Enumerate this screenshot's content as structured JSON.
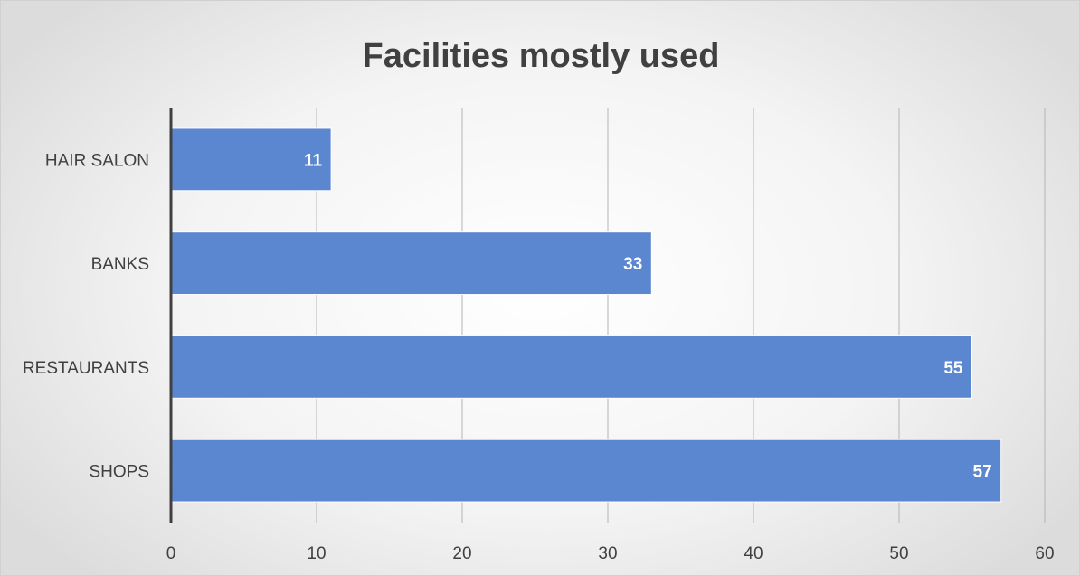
{
  "chart_data": {
    "type": "bar",
    "orientation": "horizontal",
    "title": "Facilities mostly used",
    "categories": [
      "HAIR SALON",
      "BANKS",
      "RESTAURANTS",
      "SHOPS"
    ],
    "values": [
      11,
      33,
      55,
      57
    ],
    "xlim": [
      0,
      60
    ],
    "xticks": [
      0,
      10,
      20,
      30,
      40,
      50,
      60
    ],
    "grid": true,
    "legend": "none",
    "data_labels": true,
    "colors": {
      "bar": "#5b87d0",
      "bar_border": "#ffffff",
      "grid": "#b4b4b4",
      "axis": "#404040"
    }
  }
}
